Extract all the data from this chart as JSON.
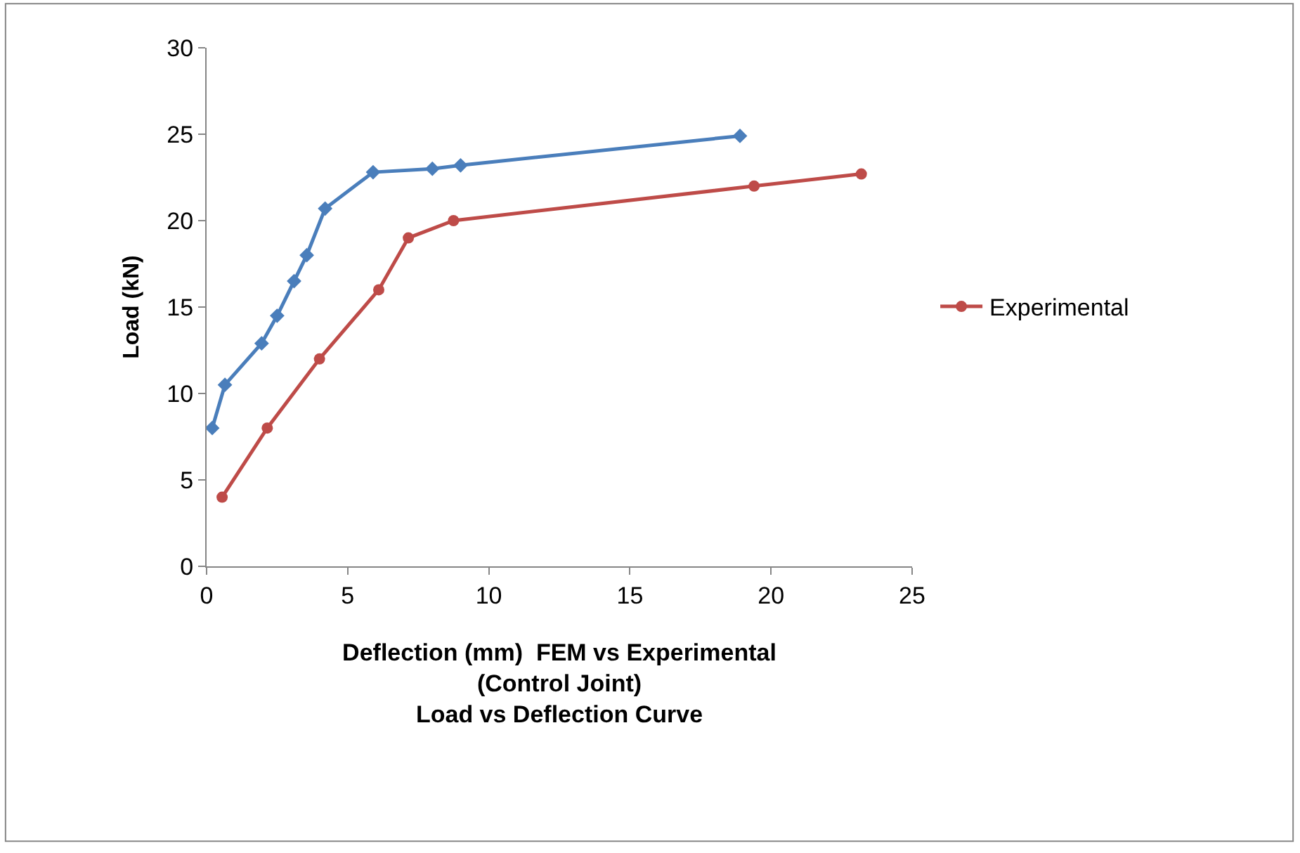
{
  "chart_data": {
    "type": "line",
    "xlabel": "Deflection (mm)  FEM vs Experimental\n(Control Joint)\nLoad vs Deflection Curve",
    "ylabel": "Load (kN)",
    "series": [
      {
        "color": "#4a7ebb",
        "marker": "diamond",
        "x": [
          0.2,
          0.65,
          1.95,
          2.5,
          3.1,
          3.55,
          4.2,
          5.9,
          8.0,
          9.0,
          18.9
        ],
        "values": [
          8.0,
          10.5,
          12.9,
          14.5,
          16.5,
          18.0,
          20.7,
          22.8,
          23.0,
          23.2,
          24.9
        ]
      },
      {
        "name": "Experimental",
        "color": "#be4b48",
        "marker": "circle",
        "x": [
          0.55,
          2.15,
          4.0,
          6.1,
          7.15,
          8.75,
          19.4,
          23.2
        ],
        "values": [
          4.0,
          8.0,
          12.0,
          16.0,
          19.0,
          20.0,
          22.0,
          22.7
        ]
      }
    ],
    "xlim": [
      0,
      25
    ],
    "xticks": [
      0,
      5,
      10,
      15,
      20,
      25
    ],
    "ylim": [
      0,
      30
    ],
    "yticks": [
      0,
      5,
      10,
      15,
      20,
      25,
      30
    ],
    "legend": "right"
  }
}
